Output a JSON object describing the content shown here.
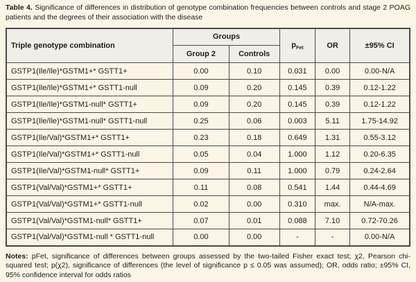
{
  "title": {
    "label": "Table 4.",
    "text": "Significance of differences in distribution of genotype combination frequencies between controls and stage 2 POAG patients and the degrees of their association with the disease"
  },
  "table": {
    "header": {
      "genotype_col": "Triple genotype  combination",
      "groups": "Groups",
      "group2": "Group 2",
      "controls": "Controls",
      "p_base": "p",
      "p_sub": "Fet",
      "or_col": "OR",
      "ci_col": "±95% CI"
    },
    "columns_keys": [
      "genotype",
      "group2",
      "controls",
      "p_fet",
      "or",
      "ci"
    ],
    "rows": [
      {
        "genotype": "GSTP1(Ile/Ile)*GSTM1+* GSTT1+",
        "group2": "0.00",
        "controls": "0.10",
        "p_fet": "0.031",
        "or": "0.00",
        "ci": "0.00-N/A"
      },
      {
        "genotype": "GSTP1(Ile/Ile)*GSTM1+* GSTT1-null",
        "group2": "0.09",
        "controls": "0.20",
        "p_fet": "0.145",
        "or": "0.39",
        "ci": "0.12-1.22"
      },
      {
        "genotype": "GSTP1(Ile/Ile)*GSTM1-null* GSTT1+",
        "group2": "0.09",
        "controls": "0.20",
        "p_fet": "0.145",
        "or": "0.39",
        "ci": "0.12-1.22"
      },
      {
        "genotype": "GSTP1(Ile/Ile)*GSTM1-null* GSTT1-null",
        "group2": "0.25",
        "controls": "0.06",
        "p_fet": "0.003",
        "or": "5.11",
        "ci": "1.75-14.92"
      },
      {
        "genotype": "GSTP1(Ile/Val)*GSTM1+* GSTT1+",
        "group2": "0.23",
        "controls": "0.18",
        "p_fet": "0.649",
        "or": "1.31",
        "ci": "0.55-3.12"
      },
      {
        "genotype": "GSTP1(Ile/Val)*GSTM1+* GSTT1-null",
        "group2": "0.05",
        "controls": "0.04",
        "p_fet": "1.000",
        "or": "1.12",
        "ci": "0.20-6.35"
      },
      {
        "genotype": "GSTP1(Ile/Val)*GSTM1-null* GSTT1+",
        "group2": "0.09",
        "controls": "0.11",
        "p_fet": "1.000",
        "or": "0.79",
        "ci": "0.24-2.64"
      },
      {
        "genotype": "GSTP1(Val/Val)*GSTM1+* GSTT1+",
        "group2": "0.11",
        "controls": "0.08",
        "p_fet": "0.541",
        "or": "1.44",
        "ci": "0.44-4.69"
      },
      {
        "genotype": "GSTP1(Val/Val)*GSTM1+* GSTT1-null",
        "group2": "0.02",
        "controls": "0.00",
        "p_fet": "0.310",
        "or": "max.",
        "ci": "N/A-max."
      },
      {
        "genotype": "GSTP1(Val/Val)*GSTM1-null* GSTT1+",
        "group2": "0.07",
        "controls": "0.01",
        "p_fet": "0.088",
        "or": "7.10",
        "ci": "0.72-70.26"
      },
      {
        "genotype": "GSTP1(Val/Val)*GSTM1-null * GSTT1-null",
        "group2": "0.00",
        "controls": "0.00",
        "p_fet": "-",
        "or": "-",
        "ci": "0.00-N/A"
      }
    ]
  },
  "notes": {
    "label": "Notes:",
    "text": "pFet, significance of differences between groups assessed by the two-tailed Fisher exact test; χ2, Pearson chi-squared test; p(χ2), significance of differences (the level of significance p ≤ 0.05 was assumed); OR, odds ratio; ±95% CI, 95% confidence interval for odds ratios"
  },
  "colors": {
    "page_bg": "#fbf5e6",
    "header_bg": "#efeee9",
    "border": "#4a4a48",
    "text": "#1d1d1b"
  }
}
